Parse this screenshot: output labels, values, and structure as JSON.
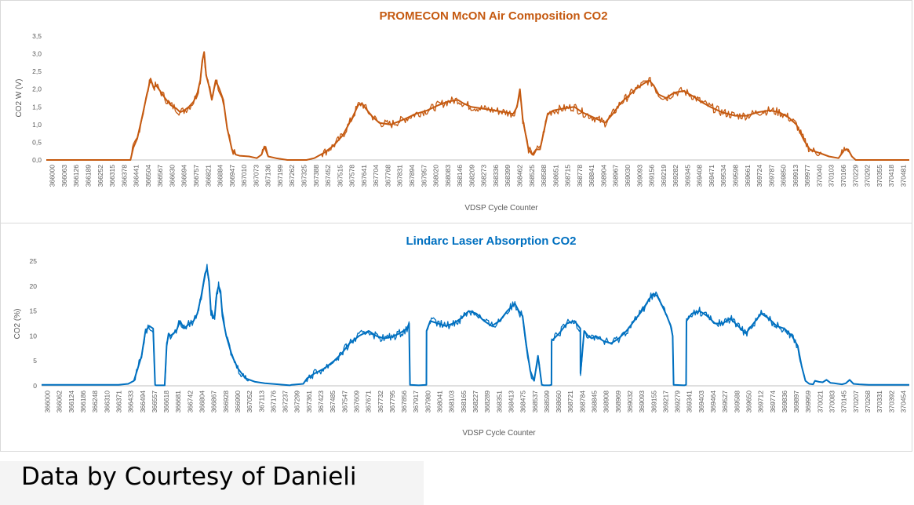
{
  "footer": {
    "text": "Data by Courtesy of Danieli"
  },
  "chart_data": [
    {
      "type": "line",
      "title": "PROMECON McON Air Composition CO2",
      "xlabel": "VDSP  Cycle Counter",
      "ylabel": "CO2 W (V)",
      "color": "#C55A11",
      "grid": false,
      "ylim": [
        0,
        3.5
      ],
      "y_ticks": [
        "0,0",
        "0,5",
        "1,0",
        "1,5",
        "2,0",
        "2,5",
        "3,0",
        "3,5"
      ],
      "x_ticks": [
        "366000",
        "366063",
        "366126",
        "366189",
        "366252",
        "366315",
        "366378",
        "366441",
        "366504",
        "366567",
        "366630",
        "366694",
        "366757",
        "366821",
        "366884",
        "366947",
        "367010",
        "367073",
        "367136",
        "367199",
        "367262",
        "367325",
        "367388",
        "367452",
        "367515",
        "367578",
        "367641",
        "367704",
        "367768",
        "367831",
        "367894",
        "367957",
        "368020",
        "368083",
        "368146",
        "368209",
        "368273",
        "368336",
        "368399",
        "368462",
        "368525",
        "368588",
        "368651",
        "368715",
        "368778",
        "368841",
        "368904",
        "368967",
        "369030",
        "369093",
        "369156",
        "369219",
        "369282",
        "369345",
        "369408",
        "369471",
        "369534",
        "369598",
        "369661",
        "369724",
        "369787",
        "369850",
        "369913",
        "369977",
        "370040",
        "370103",
        "370166",
        "370229",
        "370292",
        "370355",
        "370418",
        "370481"
      ],
      "x_range": [
        366000,
        370510
      ],
      "series": [
        {
          "x": [
            366000,
            366440,
            366455,
            366475,
            366500,
            366520,
            366545,
            366560,
            366575,
            366595,
            366620,
            366650,
            366680,
            366700,
            366720,
            366745,
            366770,
            366790,
            366805,
            366815,
            366825,
            366835,
            366850,
            366865,
            366885,
            366905,
            366925,
            366945,
            366970,
            366990,
            367010,
            367060,
            367100,
            367125,
            367140,
            367160,
            367200,
            367260,
            367320,
            367360,
            367400,
            367450,
            367500,
            367550,
            367600,
            367630,
            367650,
            367670,
            367700,
            367740,
            367800,
            367870,
            367930,
            367990,
            368050,
            368100,
            368150,
            368180,
            368220,
            368280,
            368340,
            368400,
            368440,
            368460,
            368475,
            368490,
            368520,
            368540,
            368560,
            368580,
            368620,
            368650,
            368700,
            368760,
            368800,
            368860,
            368920,
            368960,
            369000,
            369040,
            369080,
            369120,
            369150,
            369175,
            369200,
            369240,
            369280,
            369330,
            369380,
            369420,
            369470,
            369530,
            369600,
            369660,
            369720,
            369780,
            369830,
            369880,
            369920,
            369960,
            369990,
            370010,
            370040,
            370090,
            370140,
            370170,
            370190,
            370210,
            370230,
            370250,
            370300,
            370510
          ],
          "y": [
            0,
            0,
            0.35,
            0.6,
            1.2,
            1.7,
            2.3,
            2.05,
            2.1,
            1.95,
            1.75,
            1.55,
            1.45,
            1.35,
            1.4,
            1.5,
            1.65,
            1.9,
            2.25,
            2.8,
            3.05,
            2.4,
            2.1,
            1.7,
            2.25,
            2.0,
            1.7,
            0.9,
            0.3,
            0.15,
            0.12,
            0.1,
            0.05,
            0.15,
            0.38,
            0.1,
            0.05,
            0,
            0,
            0,
            0.05,
            0.2,
            0.4,
            0.7,
            1.2,
            1.55,
            1.6,
            1.45,
            1.25,
            1.05,
            1.0,
            1.15,
            1.3,
            1.4,
            1.55,
            1.65,
            1.7,
            1.6,
            1.5,
            1.45,
            1.4,
            1.35,
            1.3,
            1.5,
            2.0,
            1.15,
            0.3,
            0.15,
            0.3,
            0.3,
            1.3,
            1.4,
            1.45,
            1.5,
            1.35,
            1.2,
            1.05,
            1.3,
            1.6,
            1.8,
            2.0,
            2.15,
            2.25,
            2.1,
            1.85,
            1.75,
            1.9,
            1.95,
            1.8,
            1.65,
            1.5,
            1.35,
            1.25,
            1.25,
            1.35,
            1.4,
            1.35,
            1.2,
            1.0,
            0.55,
            0.3,
            0.25,
            0.2,
            0.1,
            0.05,
            0.28,
            0.3,
            0.1,
            0,
            0,
            0,
            0
          ]
        }
      ]
    },
    {
      "type": "line",
      "title": "Lindarc Laser Absorption CO2",
      "xlabel": "VDSP  Cycle Counter",
      "ylabel": "CO2   (%)",
      "color": "#0070C0",
      "grid": false,
      "ylim": [
        0,
        25
      ],
      "y_ticks": [
        "0",
        "5",
        "10",
        "15",
        "20",
        "25"
      ],
      "x_ticks": [
        "366000",
        "366062",
        "366124",
        "366186",
        "366248",
        "366310",
        "366371",
        "366433",
        "366494",
        "366557",
        "366618",
        "366681",
        "366742",
        "366804",
        "366867",
        "366928",
        "366990",
        "367052",
        "367113",
        "367176",
        "367237",
        "367299",
        "367361",
        "367423",
        "367485",
        "367547",
        "367609",
        "367671",
        "367732",
        "367795",
        "367856",
        "367917",
        "367980",
        "368041",
        "368103",
        "368165",
        "368227",
        "368289",
        "368351",
        "368413",
        "368475",
        "368537",
        "368599",
        "368660",
        "368721",
        "368784",
        "368845",
        "368908",
        "368969",
        "369032",
        "369093",
        "369155",
        "369217",
        "369279",
        "369341",
        "369403",
        "369464",
        "369527",
        "369588",
        "369650",
        "369712",
        "369774",
        "369836",
        "369897",
        "369959",
        "370021",
        "370083",
        "370145",
        "370207",
        "370268",
        "370331",
        "370392",
        "370454"
      ],
      "x_range": [
        366000,
        370510
      ],
      "series": [
        {
          "x": [
            366000,
            366400,
            366450,
            366480,
            366500,
            366520,
            366540,
            366560,
            366580,
            366590,
            366595,
            366640,
            366650,
            366660,
            366670,
            366700,
            366720,
            366740,
            366770,
            366790,
            366810,
            366830,
            366850,
            366860,
            366870,
            366880,
            366890,
            366900,
            366910,
            366920,
            366930,
            366940,
            366960,
            366990,
            367020,
            367060,
            367110,
            367160,
            367230,
            367260,
            367290,
            367300,
            367330,
            367360,
            367380,
            367420,
            367470,
            367520,
            367560,
            367600,
            367650,
            367700,
            367740,
            367780,
            367820,
            367860,
            367900,
            367910,
            367915,
            367960,
            368000,
            368001,
            368020,
            368060,
            368100,
            368140,
            368180,
            368220,
            368260,
            368300,
            368340,
            368380,
            368420,
            368460,
            368480,
            368500,
            368520,
            368540,
            368560,
            368580,
            368600,
            368610,
            368640,
            368650,
            368651,
            368690,
            368730,
            368770,
            368790,
            368800,
            368801,
            368820,
            368840,
            368860,
            368880,
            368920,
            368960,
            369000,
            369040,
            369080,
            369120,
            369160,
            369180,
            369200,
            369220,
            369250,
            369270,
            369280,
            369285,
            369340,
            369350,
            369352,
            369380,
            369420,
            369460,
            369500,
            369540,
            369580,
            369620,
            369660,
            369700,
            369740,
            369780,
            369820,
            369860,
            369900,
            369930,
            369950,
            369970,
            369990,
            370010,
            370020,
            370040,
            370060,
            370080,
            370100,
            370120,
            370140,
            370160,
            370180,
            370200,
            370220,
            370250,
            370300,
            370510
          ],
          "y": [
            0.2,
            0.2,
            0.4,
            1.0,
            3.5,
            6.0,
            11.0,
            12.0,
            11.5,
            0.2,
            0.1,
            0.1,
            8.0,
            10.5,
            10.0,
            11.0,
            13.0,
            11.5,
            12.5,
            13.0,
            14.5,
            18.0,
            22.5,
            23.5,
            21.0,
            15.0,
            13.5,
            14.0,
            18.5,
            20.0,
            19.0,
            14.0,
            10.0,
            6.0,
            3.5,
            1.5,
            0.8,
            0.5,
            0.3,
            0.2,
            0.1,
            0.2,
            0.3,
            0.4,
            1.5,
            2.5,
            3.5,
            5.0,
            6.5,
            8.5,
            10.0,
            11.0,
            10.0,
            9.5,
            9.8,
            10.5,
            11.5,
            12.5,
            0.2,
            0.1,
            0.2,
            11.0,
            13.0,
            12.5,
            12.0,
            12.5,
            13.5,
            15.0,
            14.5,
            13.0,
            12.0,
            13.0,
            15.0,
            16.5,
            15.0,
            14.0,
            8.0,
            3.0,
            1.0,
            6.0,
            0.2,
            0.1,
            0.1,
            0.2,
            9.0,
            10.5,
            12.5,
            13.0,
            12.0,
            11.5,
            2.5,
            11.0,
            10.0,
            9.5,
            10.0,
            9.0,
            8.5,
            9.5,
            11.0,
            13.0,
            15.0,
            17.5,
            18.5,
            18.0,
            16.5,
            14.0,
            12.0,
            10.0,
            0.2,
            0.1,
            0.2,
            13.0,
            14.5,
            15.0,
            14.0,
            12.5,
            12.5,
            13.5,
            12.0,
            10.5,
            12.5,
            14.5,
            13.5,
            12.0,
            11.5,
            10.0,
            8.0,
            4.0,
            1.0,
            0.4,
            0.3,
            1.0,
            0.8,
            0.7,
            1.2,
            0.6,
            0.5,
            0.4,
            0.3,
            0.5,
            1.2,
            0.4,
            0.3,
            0.2,
            0.2
          ]
        }
      ]
    }
  ]
}
